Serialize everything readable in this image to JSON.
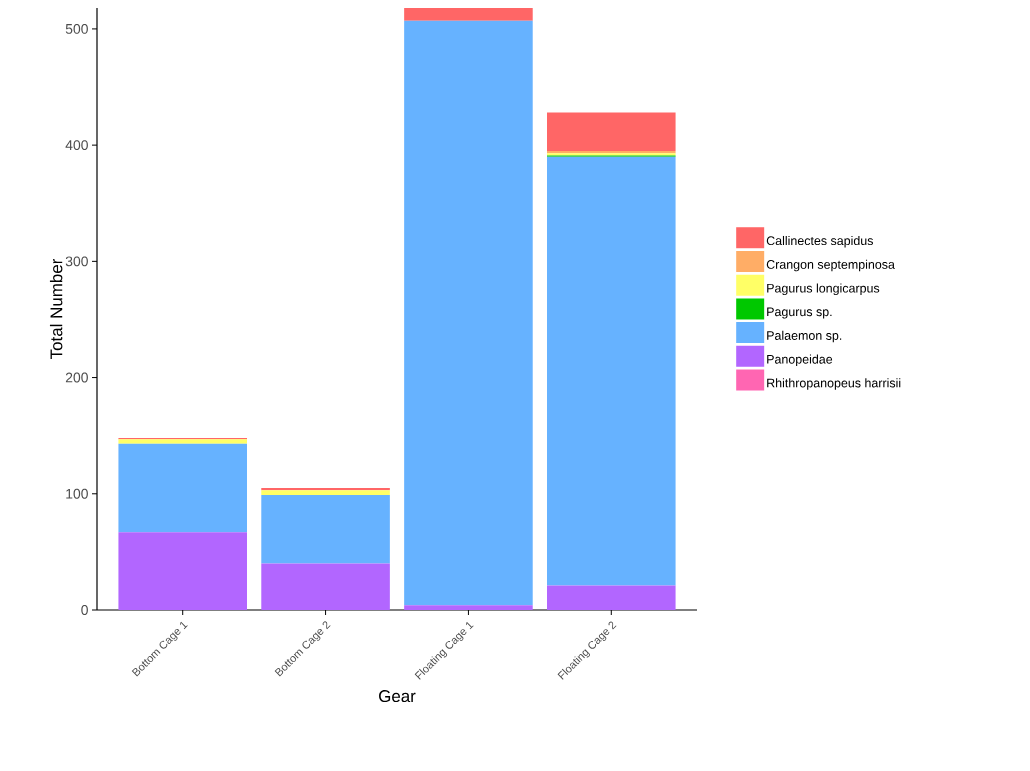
{
  "chart_data": {
    "type": "bar",
    "stacked": true,
    "xlabel": "Gear",
    "ylabel": "Total Number",
    "categories": [
      "Bottom Cage 1",
      "Bottom Cage 2",
      "Floating Cage 1",
      "Floating Cage 2"
    ],
    "series": [
      {
        "name": "Rhithropanopeus harrisii",
        "color": "#ff66b2",
        "values": [
          0,
          0,
          0,
          0
        ]
      },
      {
        "name": "Panopeidae",
        "color": "#b266ff",
        "values": [
          67,
          40,
          4,
          21
        ]
      },
      {
        "name": "Palaemon sp.",
        "color": "#66b2ff",
        "values": [
          76,
          59,
          503,
          369
        ]
      },
      {
        "name": "Pagurus sp.",
        "color": "#00c800",
        "values": [
          0,
          0,
          0,
          1
        ]
      },
      {
        "name": "Pagurus longicarpus",
        "color": "#ffff66",
        "values": [
          4,
          4,
          0,
          2
        ]
      },
      {
        "name": "Crangon septempinosa",
        "color": "#ffad66",
        "values": [
          0,
          0,
          0,
          2
        ]
      },
      {
        "name": "Callinectes sapidus",
        "color": "#ff6666",
        "values": [
          1,
          2,
          11,
          33
        ]
      }
    ],
    "ylim": [
      0,
      518
    ],
    "yticks": [
      0,
      100,
      200,
      300,
      400,
      500
    ],
    "grid": false,
    "legend": "right"
  }
}
